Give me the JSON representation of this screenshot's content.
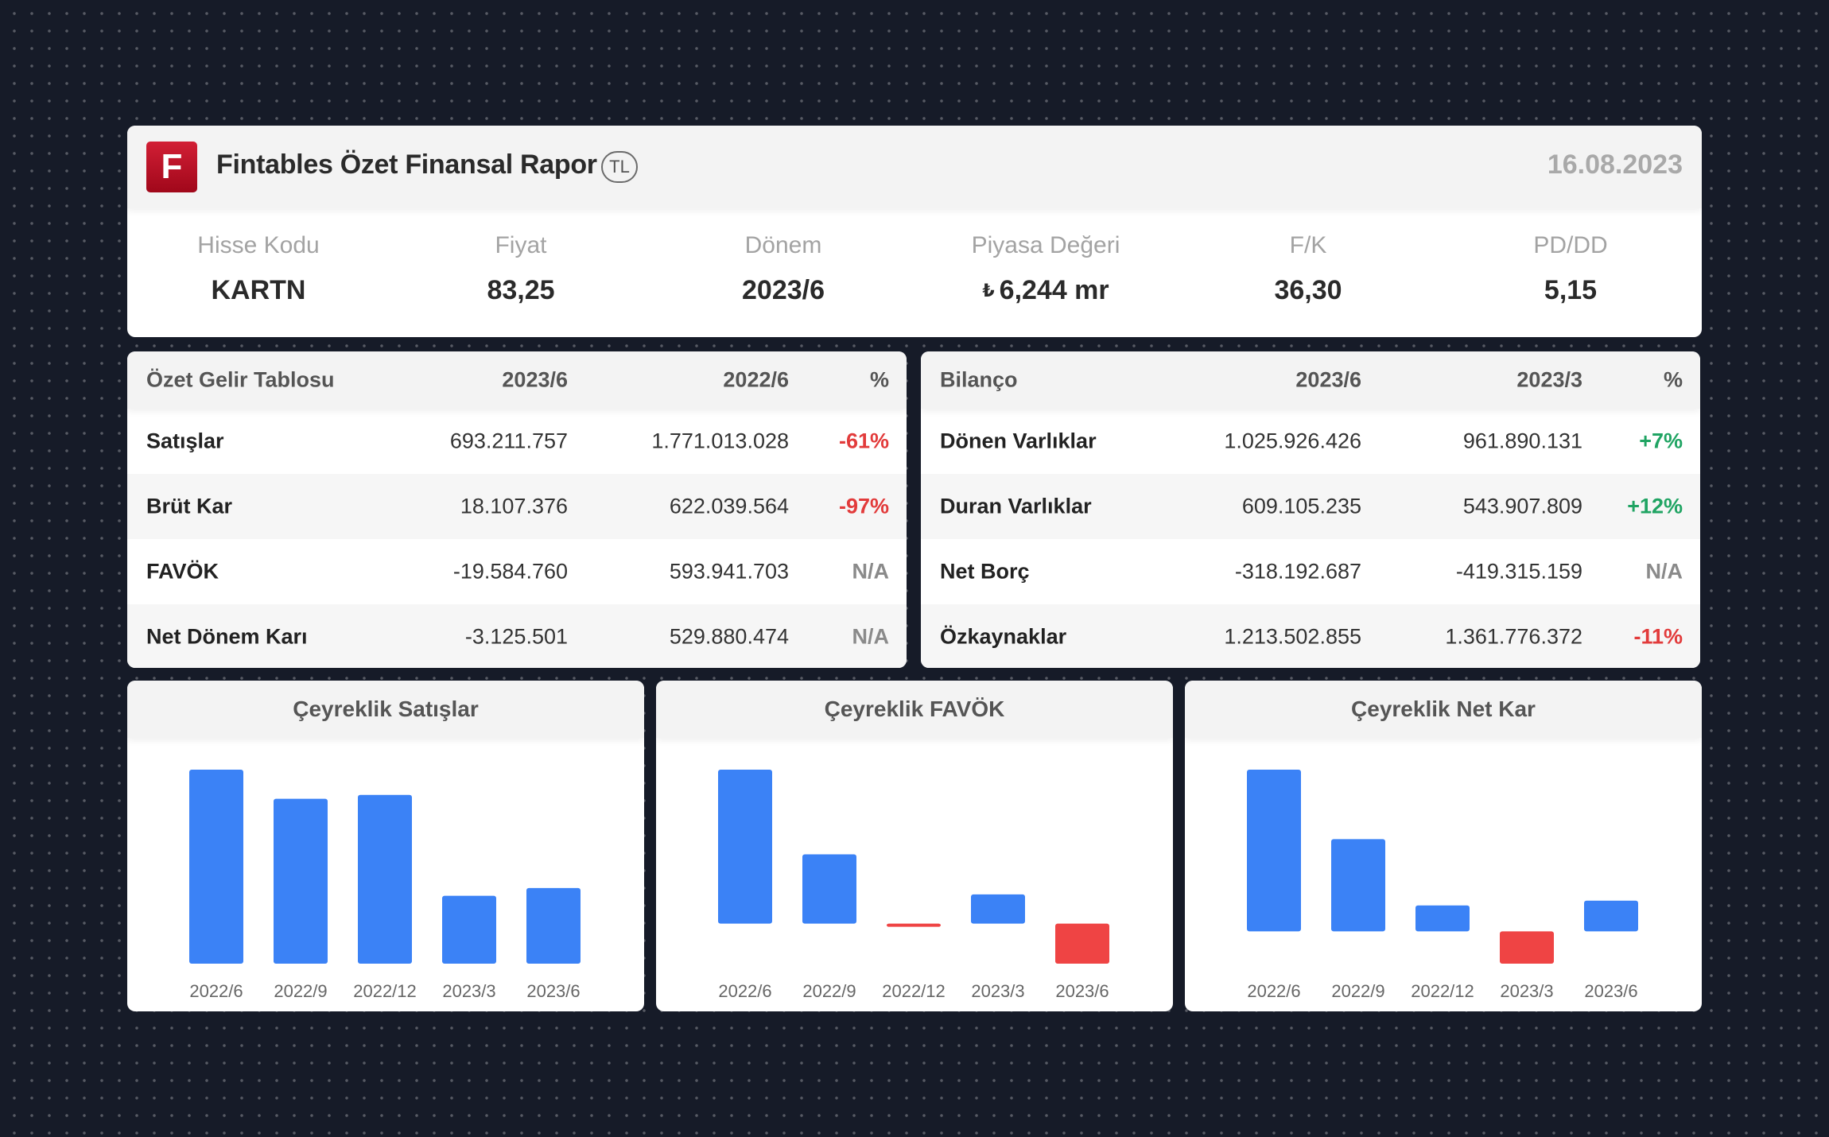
{
  "header": {
    "logo_letter": "F",
    "title": "Fintables Özet Finansal Rapor",
    "currency": "TL",
    "date": "16.08.2023"
  },
  "metrics": [
    {
      "label": "Hisse Kodu",
      "value": "KARTN"
    },
    {
      "label": "Fiyat",
      "value": "83,25"
    },
    {
      "label": "Dönem",
      "value": "2023/6"
    },
    {
      "label": "Piyasa Değeri",
      "symbol": "₺",
      "value": "6,244 mr"
    },
    {
      "label": "F/K",
      "value": "36,30"
    },
    {
      "label": "PD/DD",
      "value": "5,15"
    }
  ],
  "income": {
    "headers": [
      "Özet Gelir Tablosu",
      "2023/6",
      "2022/6",
      "%"
    ],
    "rows": [
      {
        "name": "Satışlar",
        "a": "693.211.757",
        "b": "1.771.013.028",
        "pct": "-61%"
      },
      {
        "name": "Brüt Kar",
        "a": "18.107.376",
        "b": "622.039.564",
        "pct": "-97%"
      },
      {
        "name": "FAVÖK",
        "a": "-19.584.760",
        "b": "593.941.703",
        "pct": "N/A"
      },
      {
        "name": "Net Dönem Karı",
        "a": "-3.125.501",
        "b": "529.880.474",
        "pct": "N/A"
      }
    ]
  },
  "balance": {
    "headers": [
      "Bilanço",
      "2023/6",
      "2023/3",
      "%"
    ],
    "rows": [
      {
        "name": "Dönen Varlıklar",
        "a": "1.025.926.426",
        "b": "961.890.131",
        "pct": "+7%"
      },
      {
        "name": "Duran Varlıklar",
        "a": "609.105.235",
        "b": "543.907.809",
        "pct": "+12%"
      },
      {
        "name": "Net Borç",
        "a": "-318.192.687",
        "b": "-419.315.159",
        "pct": "N/A"
      },
      {
        "name": "Özkaynaklar",
        "a": "1.213.502.855",
        "b": "1.361.776.372",
        "pct": "-11%"
      }
    ]
  },
  "colors": {
    "positive_bar": "#3b82f6",
    "negative_bar": "#ef4444",
    "pct_negative": "#e23b3b",
    "pct_positive": "#20a463"
  },
  "chart_data": [
    {
      "type": "bar",
      "title": "Çeyreklik Satışlar",
      "categories": [
        "2022/6",
        "2022/9",
        "2022/12",
        "2023/3",
        "2023/6"
      ],
      "values": [
        100,
        85,
        87,
        35,
        39
      ]
    },
    {
      "type": "bar",
      "title": "Çeyreklik FAVÖK",
      "categories": [
        "2022/6",
        "2022/9",
        "2022/12",
        "2023/3",
        "2023/6"
      ],
      "values": [
        100,
        45,
        -1.5,
        19,
        -26
      ]
    },
    {
      "type": "bar",
      "title": "Çeyreklik Net Kar",
      "categories": [
        "2022/6",
        "2022/9",
        "2022/12",
        "2023/3",
        "2023/6"
      ],
      "values": [
        100,
        57,
        16,
        -20,
        19
      ]
    }
  ]
}
